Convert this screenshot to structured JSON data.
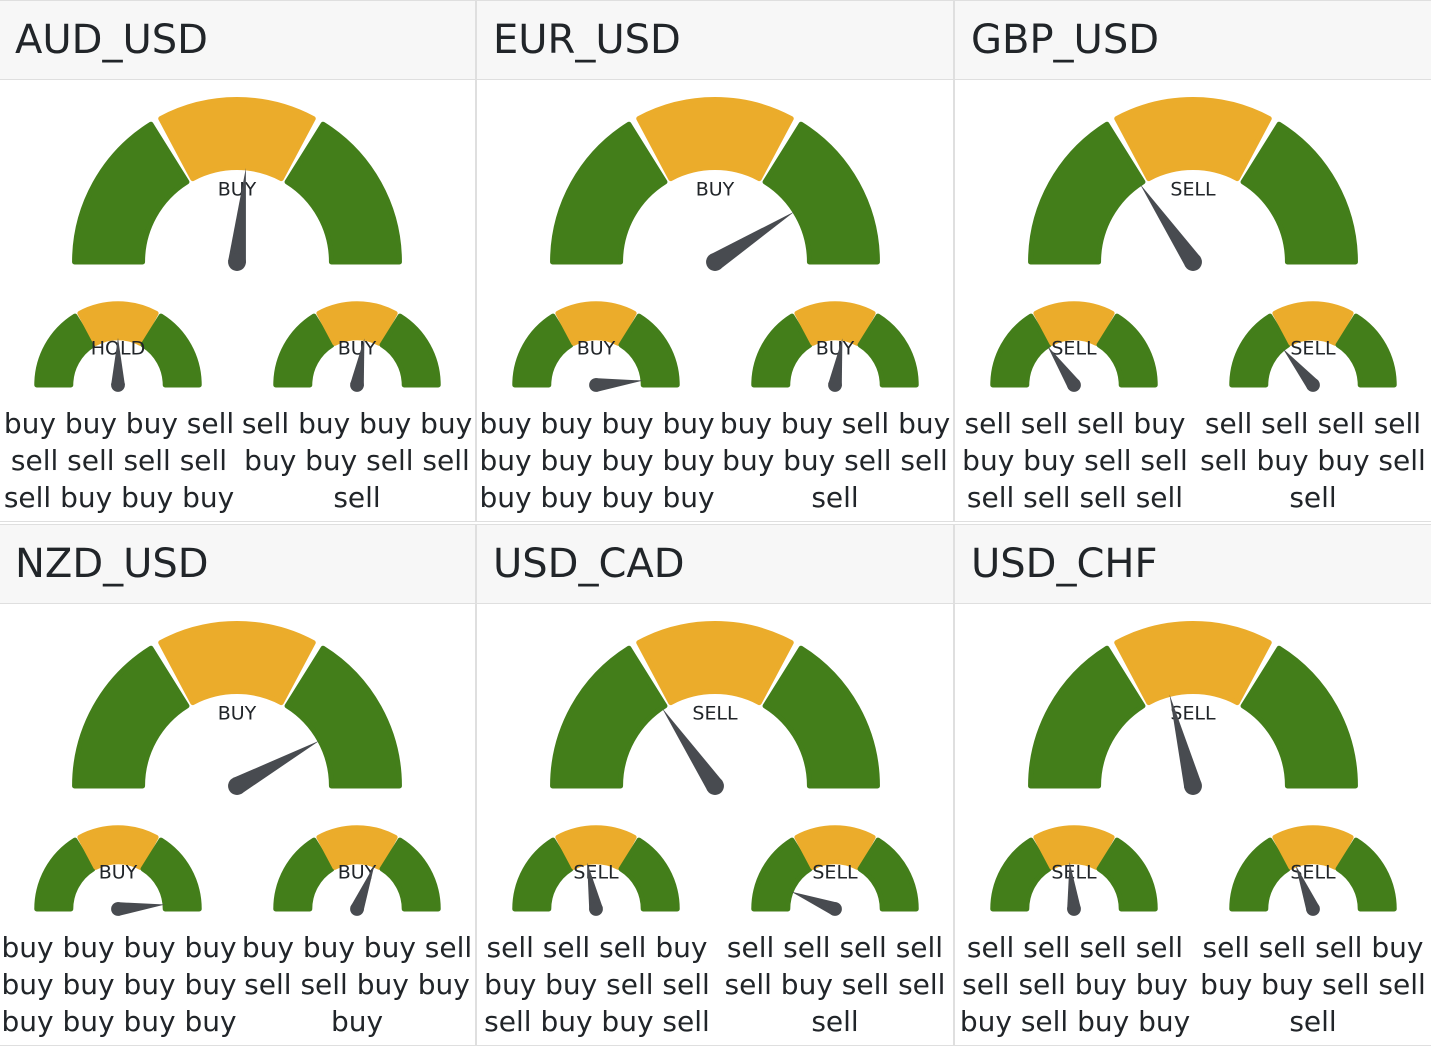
{
  "colors": {
    "green": "#437e1a",
    "yellow": "#ebac2b",
    "needle": "#484b50",
    "header_bg": "#f7f7f7"
  },
  "pairs": [
    {
      "name": "AUD_USD",
      "main": {
        "label": "BUY",
        "value": 0.53
      },
      "subs": [
        {
          "label": "HOLD",
          "value": 0.5,
          "text": "buy buy buy sell sell sell sell sell sell buy buy buy"
        },
        {
          "label": "BUY",
          "value": 0.55,
          "text": "sell buy buy buy buy buy sell sell sell"
        }
      ]
    },
    {
      "name": "EUR_USD",
      "main": {
        "label": "BUY",
        "value": 0.82
      },
      "subs": [
        {
          "label": "BUY",
          "value": 0.97,
          "text": "buy buy buy buy buy buy buy buy buy buy buy buy"
        },
        {
          "label": "BUY",
          "value": 0.55,
          "text": "buy buy sell buy buy buy sell sell sell"
        }
      ]
    },
    {
      "name": "GBP_USD",
      "main": {
        "label": "SELL",
        "value": 0.31
      },
      "subs": [
        {
          "label": "SELL",
          "value": 0.31,
          "text": "sell sell sell buy buy buy sell sell sell sell sell sell"
        },
        {
          "label": "SELL",
          "value": 0.28,
          "text": "sell sell sell sell sell buy buy sell sell"
        }
      ]
    },
    {
      "name": "NZD_USD",
      "main": {
        "label": "BUY",
        "value": 0.84
      },
      "subs": [
        {
          "label": "BUY",
          "value": 0.97,
          "text": "buy buy buy buy buy buy buy buy buy buy buy buy"
        },
        {
          "label": "BUY",
          "value": 0.62,
          "text": "buy buy buy sell sell sell buy buy buy"
        }
      ]
    },
    {
      "name": "USD_CAD",
      "main": {
        "label": "SELL",
        "value": 0.31
      },
      "subs": [
        {
          "label": "SELL",
          "value": 0.44,
          "text": "sell sell sell buy buy buy sell sell sell buy buy sell"
        },
        {
          "label": "SELL",
          "value": 0.12,
          "text": "sell sell sell sell sell buy sell sell sell"
        }
      ]
    },
    {
      "name": "USD_CHF",
      "main": {
        "label": "SELL",
        "value": 0.42
      },
      "subs": [
        {
          "label": "SELL",
          "value": 0.47,
          "text": "sell sell sell sell sell sell buy buy buy sell buy buy"
        },
        {
          "label": "SELL",
          "value": 0.38,
          "text": "sell sell sell buy buy buy sell sell sell"
        }
      ]
    }
  ]
}
